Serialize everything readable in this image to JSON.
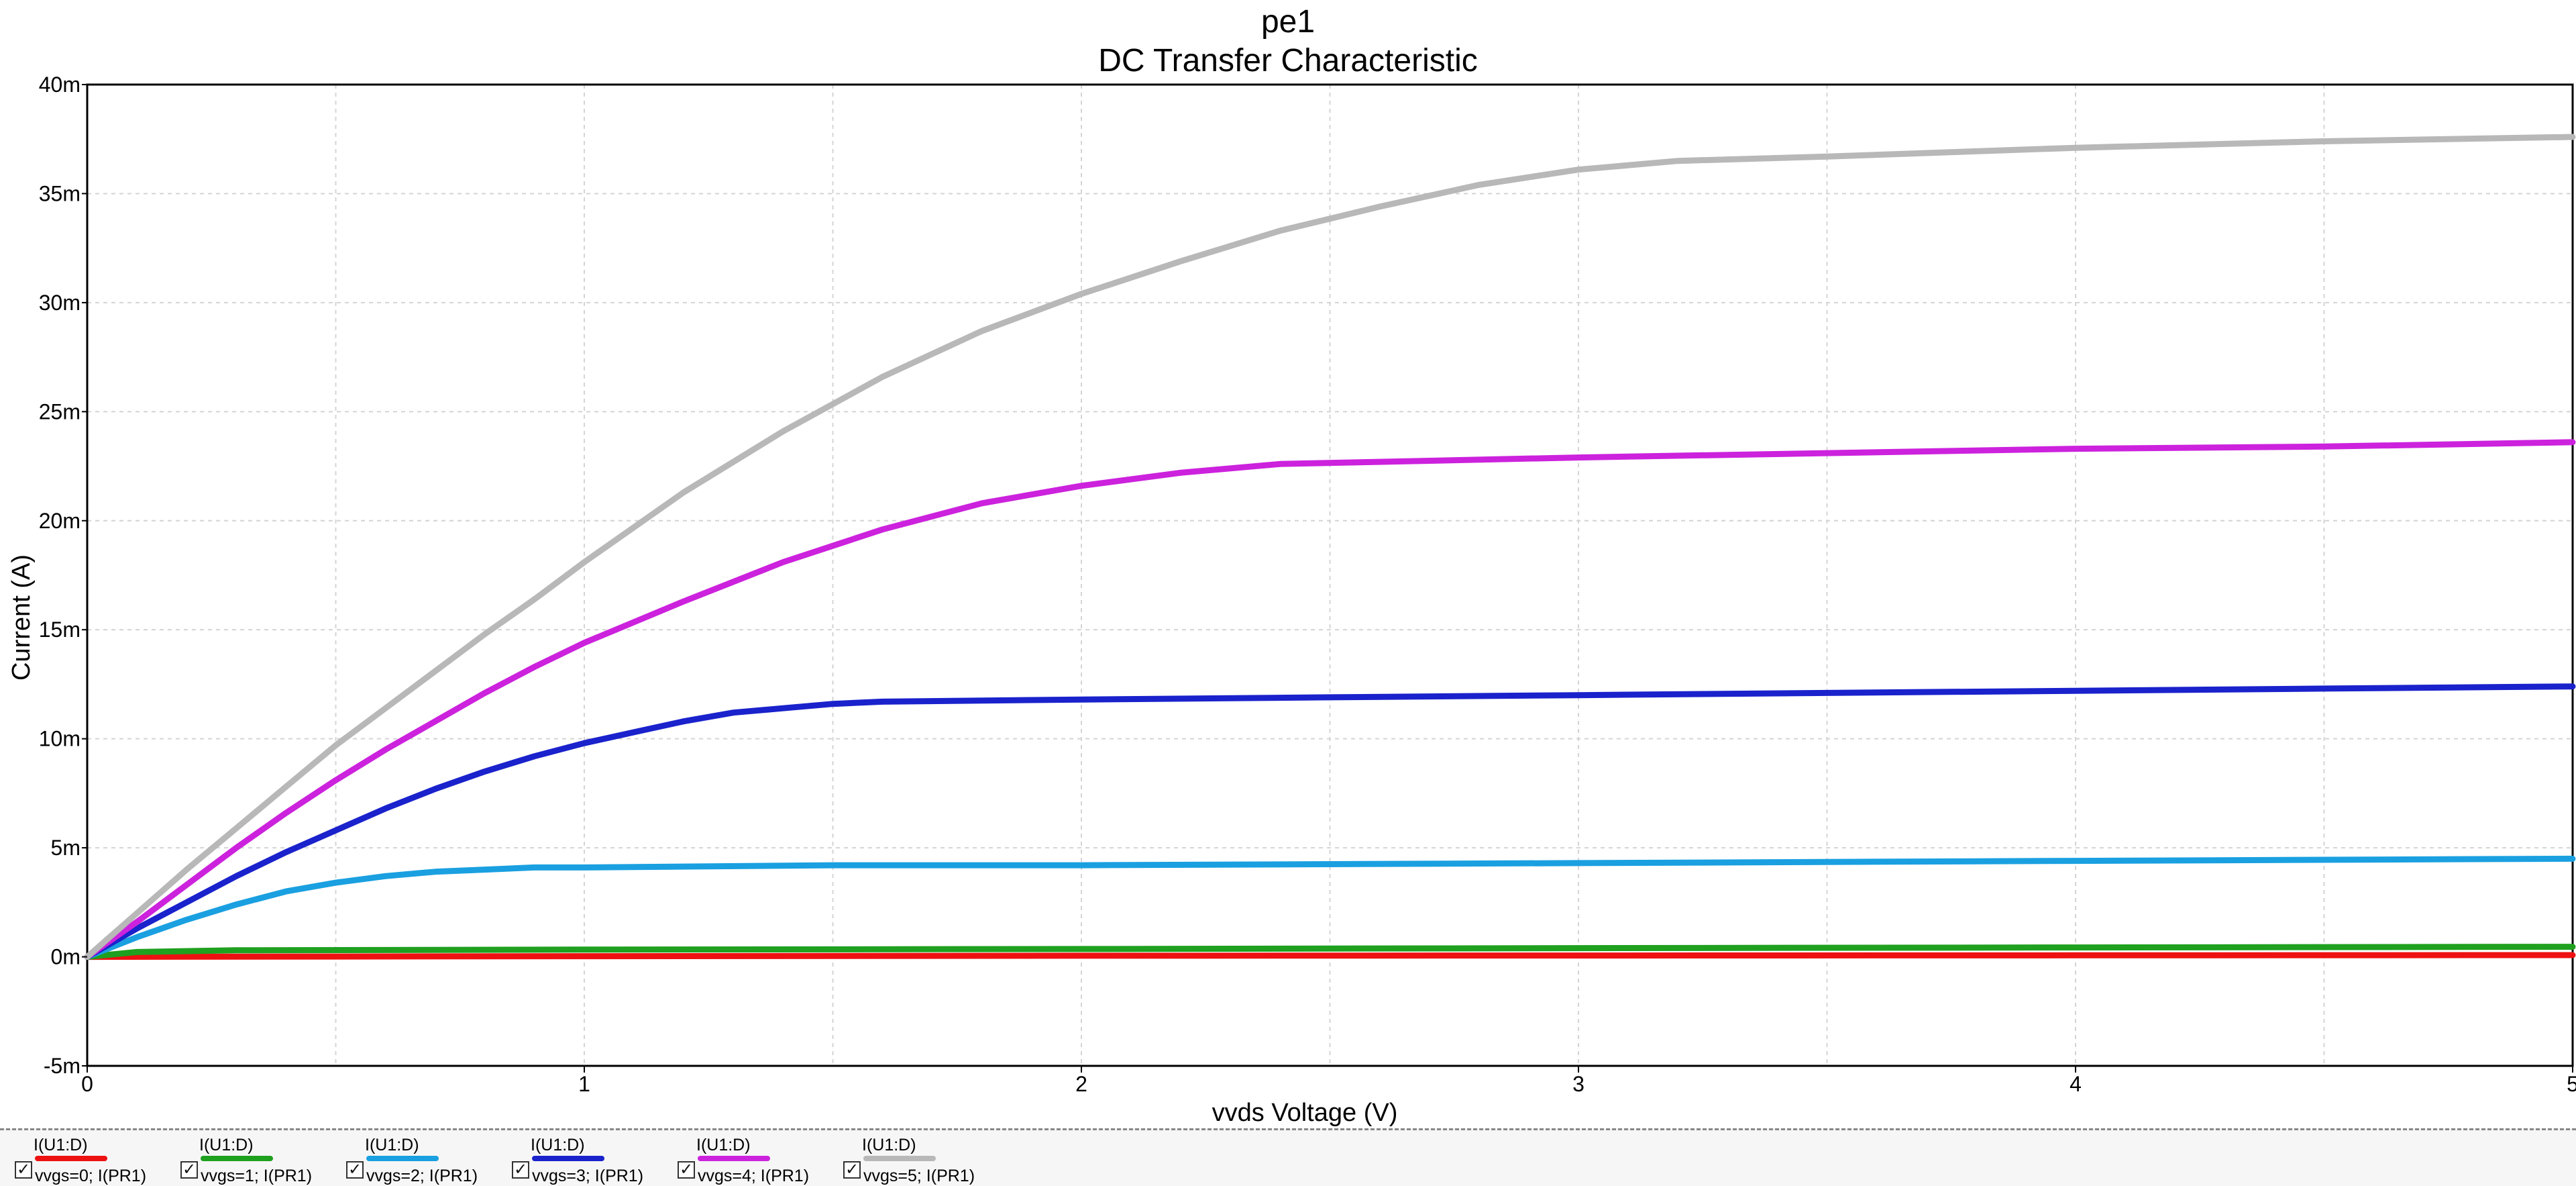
{
  "chart_data": {
    "type": "line",
    "title": "pe1",
    "subtitle": "DC Transfer Characteristic",
    "xlabel": "vvds Voltage (V)",
    "ylabel": "Current (A)",
    "xlim": [
      0,
      5
    ],
    "ylim": [
      -0.005,
      0.04
    ],
    "x_ticks": [
      0,
      1,
      2,
      3,
      4,
      5
    ],
    "x_tick_labels": [
      "0",
      "1",
      "2",
      "3",
      "4",
      "5"
    ],
    "y_ticks": [
      -0.005,
      0,
      0.005,
      0.01,
      0.015,
      0.02,
      0.025,
      0.03,
      0.035,
      0.04
    ],
    "y_tick_labels": [
      "-5m",
      "0m",
      "5m",
      "10m",
      "15m",
      "20m",
      "25m",
      "30m",
      "35m",
      "40m"
    ],
    "grid": true,
    "series": [
      {
        "name": "I(U1:D)",
        "description": "vvgs=0; I(PR1)",
        "color": "#ee1111",
        "points": [
          [
            0,
            0
          ],
          [
            1,
            3e-05
          ],
          [
            2,
            5e-05
          ],
          [
            3,
            6e-05
          ],
          [
            4,
            7e-05
          ],
          [
            5,
            8e-05
          ]
        ]
      },
      {
        "name": "I(U1:D)",
        "description": "vvgs=1; I(PR1)",
        "color": "#1fa01f",
        "points": [
          [
            0,
            0
          ],
          [
            0.1,
            0.00022
          ],
          [
            0.3,
            0.0003
          ],
          [
            1,
            0.00033
          ],
          [
            2,
            0.00036
          ],
          [
            3,
            0.0004
          ],
          [
            4,
            0.00043
          ],
          [
            5,
            0.00046
          ]
        ]
      },
      {
        "name": "I(U1:D)",
        "description": "vvgs=2; I(PR1)",
        "color": "#1aa0e0",
        "points": [
          [
            0,
            0
          ],
          [
            0.1,
            0.0009
          ],
          [
            0.2,
            0.0017
          ],
          [
            0.3,
            0.0024
          ],
          [
            0.4,
            0.003
          ],
          [
            0.5,
            0.0034
          ],
          [
            0.6,
            0.0037
          ],
          [
            0.7,
            0.0039
          ],
          [
            0.8,
            0.004
          ],
          [
            0.9,
            0.0041
          ],
          [
            1,
            0.0041
          ],
          [
            1.5,
            0.0042
          ],
          [
            2,
            0.0042
          ],
          [
            3,
            0.0043
          ],
          [
            4,
            0.0044
          ],
          [
            5,
            0.0045
          ]
        ]
      },
      {
        "name": "I(U1:D)",
        "description": "vvgs=3; I(PR1)",
        "color": "#1a22cc",
        "points": [
          [
            0,
            0
          ],
          [
            0.1,
            0.0013
          ],
          [
            0.2,
            0.0025
          ],
          [
            0.3,
            0.0037
          ],
          [
            0.4,
            0.0048
          ],
          [
            0.5,
            0.0058
          ],
          [
            0.6,
            0.0068
          ],
          [
            0.7,
            0.0077
          ],
          [
            0.8,
            0.0085
          ],
          [
            0.9,
            0.0092
          ],
          [
            1,
            0.0098
          ],
          [
            1.1,
            0.0103
          ],
          [
            1.2,
            0.0108
          ],
          [
            1.3,
            0.0112
          ],
          [
            1.4,
            0.0114
          ],
          [
            1.5,
            0.0116
          ],
          [
            1.6,
            0.0117
          ],
          [
            2,
            0.0118
          ],
          [
            2.5,
            0.0119
          ],
          [
            3,
            0.012
          ],
          [
            3.5,
            0.0121
          ],
          [
            4,
            0.0122
          ],
          [
            4.5,
            0.0123
          ],
          [
            5,
            0.0124
          ]
        ]
      },
      {
        "name": "I(U1:D)",
        "description": "vvgs=4; I(PR1)",
        "color": "#cc22dd",
        "points": [
          [
            0,
            0
          ],
          [
            0.1,
            0.0016
          ],
          [
            0.2,
            0.0033
          ],
          [
            0.3,
            0.005
          ],
          [
            0.4,
            0.0066
          ],
          [
            0.5,
            0.0081
          ],
          [
            0.6,
            0.0095
          ],
          [
            0.7,
            0.0108
          ],
          [
            0.8,
            0.0121
          ],
          [
            0.9,
            0.0133
          ],
          [
            1,
            0.0144
          ],
          [
            1.2,
            0.0163
          ],
          [
            1.4,
            0.0181
          ],
          [
            1.6,
            0.0196
          ],
          [
            1.8,
            0.0208
          ],
          [
            2,
            0.0216
          ],
          [
            2.2,
            0.0222
          ],
          [
            2.4,
            0.0226
          ],
          [
            2.6,
            0.0227
          ],
          [
            3,
            0.0229
          ],
          [
            3.5,
            0.0231
          ],
          [
            4,
            0.0233
          ],
          [
            4.5,
            0.0234
          ],
          [
            5,
            0.0236
          ]
        ]
      },
      {
        "name": "I(U1:D)",
        "description": "vvgs=5; I(PR1)",
        "color": "#b8b8b8",
        "points": [
          [
            0,
            0
          ],
          [
            0.1,
            0.002
          ],
          [
            0.2,
            0.004
          ],
          [
            0.3,
            0.0059
          ],
          [
            0.4,
            0.0078
          ],
          [
            0.5,
            0.0097
          ],
          [
            0.6,
            0.0114
          ],
          [
            0.7,
            0.0131
          ],
          [
            0.8,
            0.0148
          ],
          [
            0.9,
            0.0164
          ],
          [
            1,
            0.0181
          ],
          [
            1.2,
            0.0213
          ],
          [
            1.4,
            0.0241
          ],
          [
            1.6,
            0.0266
          ],
          [
            1.8,
            0.0287
          ],
          [
            2,
            0.0304
          ],
          [
            2.2,
            0.0319
          ],
          [
            2.4,
            0.0333
          ],
          [
            2.6,
            0.0344
          ],
          [
            2.8,
            0.0354
          ],
          [
            3,
            0.0361
          ],
          [
            3.2,
            0.0365
          ],
          [
            3.5,
            0.0367
          ],
          [
            4,
            0.0371
          ],
          [
            4.5,
            0.0374
          ],
          [
            5,
            0.0376
          ]
        ]
      }
    ]
  },
  "legend": {
    "entries": [
      {
        "name": "I(U1:D)",
        "description": "vvgs=0; I(PR1)",
        "checked": "☑"
      },
      {
        "name": "I(U1:D)",
        "description": "vvgs=1; I(PR1)",
        "checked": "☑"
      },
      {
        "name": "I(U1:D)",
        "description": "vvgs=2; I(PR1)",
        "checked": "☑"
      },
      {
        "name": "I(U1:D)",
        "description": "vvgs=3; I(PR1)",
        "checked": "☑"
      },
      {
        "name": "I(U1:D)",
        "description": "vvgs=4; I(PR1)",
        "checked": "☑"
      },
      {
        "name": "I(U1:D)",
        "description": "vvgs=5; I(PR1)",
        "checked": "☑"
      }
    ]
  }
}
